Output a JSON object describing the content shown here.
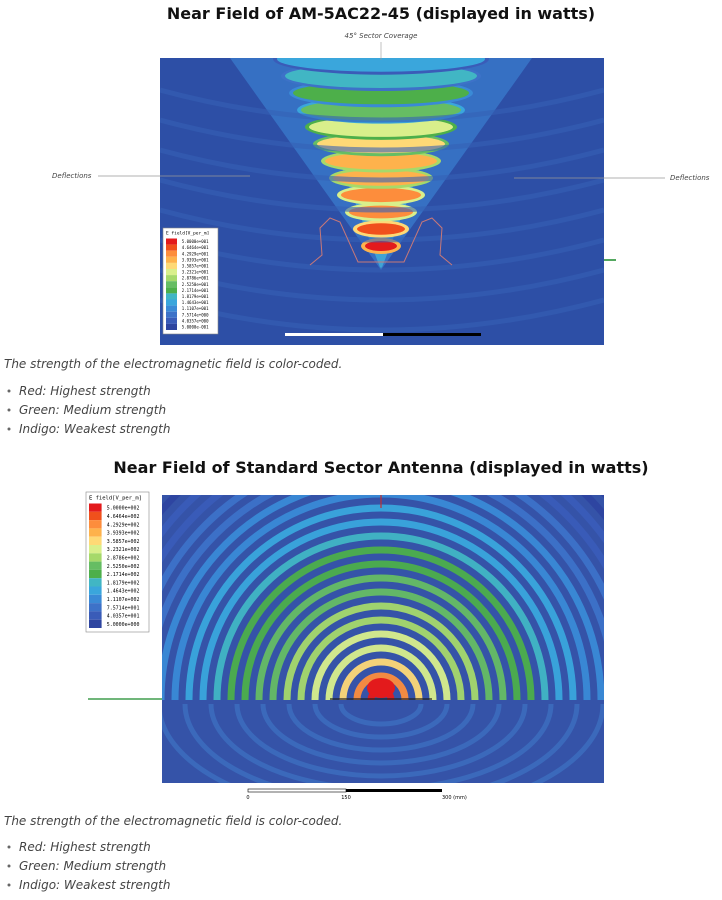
{
  "sections": [
    {
      "title": "Near Field of AM-5AC22-45 (displayed in watts)",
      "figure": {
        "top_label": "45° Sector Coverage",
        "left_label": "Deflections",
        "right_label": "Deflections",
        "legend_title": "E field[V_per_m]",
        "legend_values": [
          "5.0000e+001",
          "4.6464e+001",
          "4.2929e+001",
          "3.9393e+001",
          "3.5857e+001",
          "3.2321e+001",
          "2.8786e+001",
          "2.5250e+001",
          "2.1714e+001",
          "1.8179e+001",
          "1.4643e+001",
          "1.1107e+001",
          "7.5714e+000",
          "4.0357e+000",
          "5.0000e-001"
        ]
      },
      "caption": "The strength of the electromagnetic field is color-coded.",
      "bullets": [
        "Red:  Highest strength",
        "Green:  Medium strength",
        "Indigo:  Weakest strength"
      ]
    },
    {
      "title": "Near Field of Standard Sector Antenna (displayed in watts)",
      "figure": {
        "legend_title": "E field[V_per_m]",
        "legend_values": [
          "5.0000e+002",
          "4.6464e+002",
          "4.2929e+002",
          "3.9393e+002",
          "3.5857e+002",
          "3.2321e+002",
          "2.8786e+002",
          "2.5250e+002",
          "2.1714e+002",
          "1.8179e+002",
          "1.4643e+002",
          "1.1107e+002",
          "7.5714e+001",
          "4.0357e+001",
          "5.0000e+000"
        ],
        "scale_labels": [
          "0",
          "150",
          "300 (mm)"
        ]
      },
      "caption": "The strength of the electromagnetic field is color-coded.",
      "bullets": [
        "Red:  Highest strength",
        "Green:  Medium strength",
        "Indigo:  Weakest strength"
      ]
    }
  ]
}
